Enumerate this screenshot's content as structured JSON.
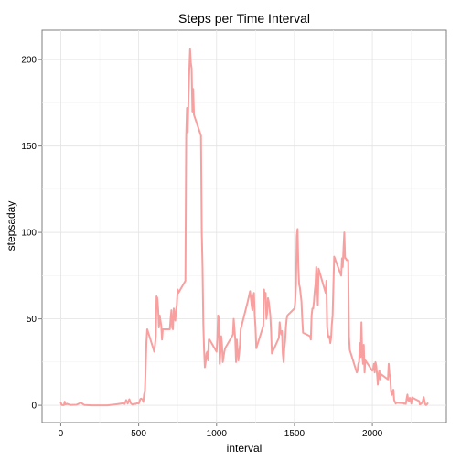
{
  "chart_data": {
    "type": "line",
    "title": "Steps per Time Interval",
    "xlabel": "interval",
    "ylabel": "stepsaday",
    "xlim": [
      -120,
      2475
    ],
    "ylim": [
      -10,
      217
    ],
    "xticks": [
      0,
      500,
      1000,
      1500,
      2000
    ],
    "yticks": [
      0,
      50,
      100,
      150,
      200
    ],
    "grid": true,
    "line_color": "#F8A0A0",
    "series": [
      {
        "x": [
          0,
          5,
          10,
          15,
          20,
          25,
          30,
          40,
          60,
          100,
          130,
          150,
          200,
          250,
          300,
          350,
          400,
          410,
          420,
          430,
          440,
          450,
          460,
          470,
          480,
          490,
          500,
          505,
          510,
          515,
          520,
          525,
          530,
          535,
          540,
          545,
          550,
          555,
          600,
          605,
          610,
          615,
          620,
          625,
          630,
          635,
          640,
          645,
          650,
          655,
          700,
          705,
          710,
          715,
          720,
          725,
          730,
          735,
          740,
          745,
          750,
          755,
          800,
          805,
          810,
          815,
          820,
          825,
          830,
          835,
          840,
          845,
          850,
          855,
          900,
          905,
          910,
          915,
          920,
          925,
          930,
          935,
          940,
          945,
          950,
          955,
          1000,
          1005,
          1010,
          1015,
          1020,
          1025,
          1030,
          1035,
          1040,
          1045,
          1050,
          1055,
          1100,
          1105,
          1110,
          1115,
          1120,
          1125,
          1130,
          1135,
          1140,
          1145,
          1150,
          1155,
          1200,
          1205,
          1210,
          1215,
          1220,
          1225,
          1230,
          1235,
          1240,
          1245,
          1250,
          1255,
          1300,
          1305,
          1310,
          1315,
          1320,
          1325,
          1330,
          1335,
          1340,
          1345,
          1350,
          1355,
          1400,
          1405,
          1410,
          1415,
          1420,
          1425,
          1430,
          1435,
          1440,
          1445,
          1450,
          1455,
          1500,
          1505,
          1510,
          1515,
          1520,
          1525,
          1530,
          1535,
          1540,
          1545,
          1550,
          1555,
          1600,
          1605,
          1610,
          1615,
          1620,
          1625,
          1630,
          1635,
          1640,
          1645,
          1650,
          1655,
          1700,
          1705,
          1710,
          1715,
          1720,
          1725,
          1730,
          1735,
          1740,
          1745,
          1750,
          1755,
          1800,
          1805,
          1810,
          1815,
          1820,
          1825,
          1830,
          1835,
          1840,
          1845,
          1850,
          1855,
          1900,
          1905,
          1910,
          1915,
          1920,
          1925,
          1930,
          1935,
          1940,
          1945,
          1950,
          1955,
          2000,
          2005,
          2010,
          2015,
          2020,
          2025,
          2030,
          2035,
          2040,
          2045,
          2050,
          2055,
          2100,
          2105,
          2110,
          2115,
          2120,
          2125,
          2130,
          2135,
          2140,
          2145,
          2150,
          2155,
          2200,
          2205,
          2210,
          2215,
          2220,
          2225,
          2230,
          2235,
          2240,
          2245,
          2250,
          2255,
          2300,
          2305,
          2310,
          2315,
          2320,
          2325,
          2330,
          2335,
          2340,
          2345,
          2350,
          2355
        ],
        "y": [
          1.7,
          0.3,
          0.1,
          0.2,
          0.1,
          2.1,
          0.5,
          0.9,
          0.2,
          0.3,
          1.5,
          0.2,
          0,
          0,
          0,
          0.5,
          1.2,
          0.8,
          3,
          1,
          3.5,
          1.1,
          0.4,
          0.9,
          0.8,
          1.2,
          1,
          2,
          3.5,
          3.9,
          3.6,
          3.4,
          1.9,
          6.4,
          7.8,
          22,
          37,
          44,
          31,
          35,
          40,
          63,
          62,
          56,
          45,
          52,
          49,
          46,
          38,
          44,
          44,
          50,
          55,
          45,
          44,
          56,
          52,
          49,
          55,
          58,
          67,
          65,
          72,
          155,
          172,
          158,
          179,
          194,
          206,
          198,
          195,
          170,
          183,
          168,
          156,
          100,
          80,
          47,
          32,
          22,
          25,
          30,
          31,
          26,
          38,
          38,
          31,
          39,
          52,
          50,
          24,
          31,
          40,
          35,
          25,
          28,
          31,
          33,
          40,
          41,
          50,
          44,
          38,
          25,
          38,
          32,
          26,
          30,
          35,
          44,
          60,
          62,
          64,
          66,
          62,
          58,
          55,
          63,
          65,
          52,
          45,
          33,
          46,
          67,
          62,
          65,
          50,
          54,
          62,
          60,
          56,
          52,
          43,
          30,
          39,
          48,
          43,
          41,
          43,
          30,
          25,
          33,
          37,
          45,
          50,
          52,
          56,
          60,
          70,
          98,
          102,
          80,
          70,
          68,
          64,
          60,
          50,
          42,
          40,
          38,
          52,
          56,
          56,
          60,
          66,
          70,
          80,
          72,
          58,
          79,
          65,
          72,
          45,
          41,
          39,
          40,
          36,
          39,
          47,
          52,
          69,
          86,
          75,
          85,
          80,
          91,
          100,
          85,
          85,
          84,
          84,
          84,
          40,
          32,
          19,
          20,
          24,
          25,
          36,
          28,
          48,
          30,
          24,
          35,
          19,
          26,
          20,
          21,
          24,
          19,
          25,
          23,
          18,
          12,
          18,
          20,
          15,
          18,
          15,
          24,
          18,
          16,
          8,
          6,
          8,
          9,
          3,
          2,
          1,
          1.5,
          1.2,
          0.9,
          1.1,
          0.8,
          3.7,
          6.2,
          3,
          2.5,
          4.3,
          3.3,
          1,
          4.5,
          2.4,
          0.5,
          0.7,
          1.1,
          1.3,
          3,
          4.7,
          2.4,
          0.5,
          0.1,
          0.5,
          1.1
        ]
      }
    ]
  }
}
